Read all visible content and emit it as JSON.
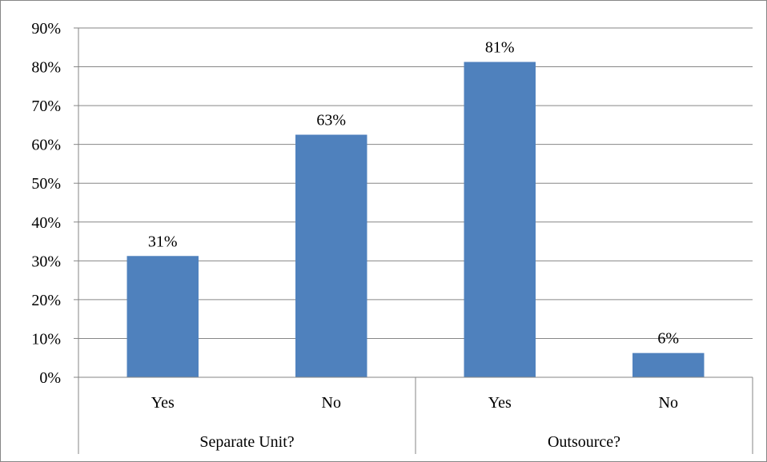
{
  "chart_data": {
    "type": "bar",
    "categories": [
      "Yes",
      "No",
      "Yes",
      "No"
    ],
    "groups": [
      {
        "label": "Separate Unit?",
        "categories": [
          "Yes",
          "No"
        ]
      },
      {
        "label": "Outsource?",
        "categories": [
          "Yes",
          "No"
        ]
      }
    ],
    "values": [
      31.25,
      62.5,
      81.25,
      6.25
    ],
    "data_labels": [
      "31%",
      "63%",
      "81%",
      "6%"
    ],
    "ylim": [
      0,
      90
    ],
    "y_ticks": [
      "0%",
      "10%",
      "20%",
      "30%",
      "40%",
      "50%",
      "60%",
      "70%",
      "80%",
      "90%"
    ],
    "grid": true,
    "legend": "none",
    "bar_color": "#4F81BD",
    "gridline_color": "#868686"
  }
}
